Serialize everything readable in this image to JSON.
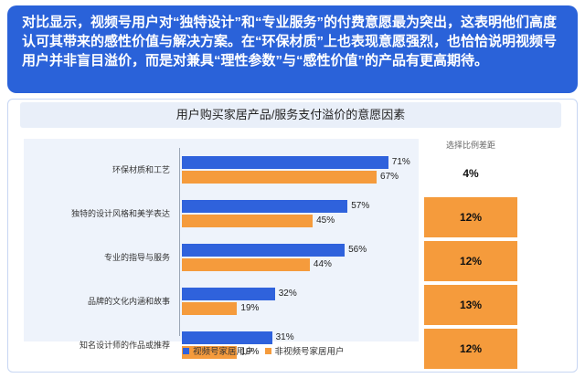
{
  "header": {
    "text": "对比显示，视频号用户对“独特设计”和“专业服务”的付费意愿最为突出，这表明他们高度认可其带来的感性价值与解决方案。在“环保材质”上也表现意愿强烈，也恰恰说明视频号用户并非盲目溢价，而是对兼具“理性参数”与“感性价值”的产品有更高期待。"
  },
  "colors": {
    "header_bg": "#2a62d9",
    "series_blue": "#2f62dc",
    "series_orange": "#f59b3c",
    "highlight_cell": "#f59b3c"
  },
  "chart_data": {
    "type": "bar",
    "orientation": "horizontal",
    "title": "用户购买家居产品/服务支付溢价的意愿因素",
    "categories": [
      "环保材质和工艺",
      "独特的设计风格和美学表达",
      "专业的指导与服务",
      "品牌的文化内涵和故事",
      "知名设计师的作品或推荐"
    ],
    "series": [
      {
        "name": "视频号家居用户",
        "values": [
          71,
          57,
          56,
          32,
          31
        ],
        "labels": [
          "71%",
          "57%",
          "56%",
          "32%",
          "31%"
        ]
      },
      {
        "name": "非视频号家居用户",
        "values": [
          67,
          45,
          44,
          19,
          19
        ],
        "labels": [
          "67%",
          "45%",
          "44%",
          "19%",
          "19%"
        ]
      }
    ],
    "difference": {
      "header": "选择比例差距",
      "labels": [
        "4%",
        "12%",
        "12%",
        "13%",
        "12%"
      ],
      "highlighted": [
        false,
        true,
        true,
        true,
        true
      ]
    },
    "xlim": [
      0,
      100
    ],
    "legend_position": "bottom"
  }
}
